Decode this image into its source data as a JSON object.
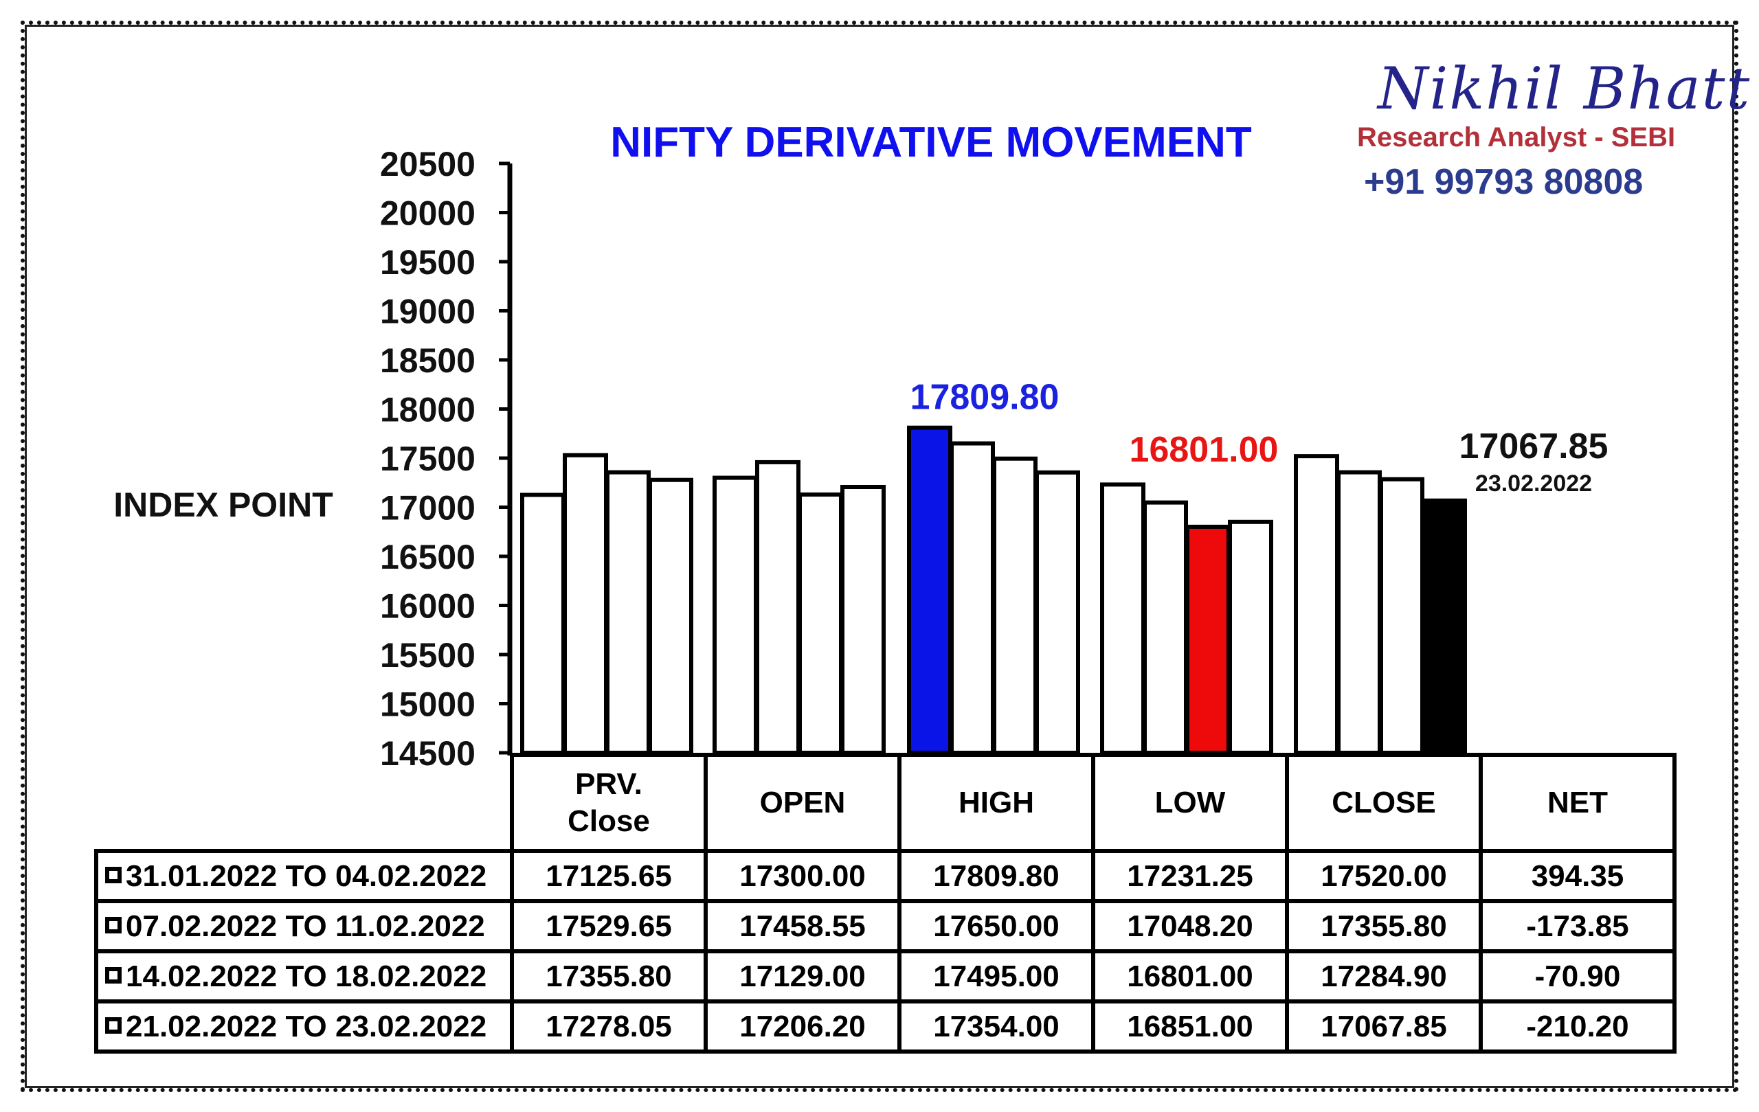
{
  "brand": {
    "name": "Nikhil Bhatt",
    "role": "Research Analyst - SEBI",
    "phone": "+91 99793 80808"
  },
  "colors": {
    "high_bar": "#0a14e6",
    "low_bar": "#ee0a0a",
    "close_bar": "#000000",
    "default_bar": "#ffffff",
    "title": "#1010ee",
    "high_label": "#1a22e0",
    "low_label": "#e81515"
  },
  "chart_data": {
    "type": "bar",
    "title": "NIFTY DERIVATIVE MOVEMENT",
    "ylabel": "INDEX POINT",
    "ylim": [
      14500,
      20500
    ],
    "yticks": [
      "20500",
      "20000",
      "19500",
      "19000",
      "18500",
      "18000",
      "17500",
      "17000",
      "16500",
      "16000",
      "15500",
      "15000",
      "14500"
    ],
    "categories": [
      "PRV. Close",
      "OPEN",
      "HIGH",
      "LOW",
      "CLOSE"
    ],
    "series": [
      {
        "name": "31.01.2022 TO 04.02.2022",
        "values": [
          17125.65,
          17300.0,
          17809.8,
          17231.25,
          17520.0
        ]
      },
      {
        "name": "07.02.2022 TO 11.02.2022",
        "values": [
          17529.65,
          17458.55,
          17650.0,
          17048.2,
          17355.8
        ]
      },
      {
        "name": "14.02.2022 TO 18.02.2022",
        "values": [
          17355.8,
          17129.0,
          17495.0,
          16801.0,
          17284.9
        ]
      },
      {
        "name": "21.02.2022 TO 23.02.2022",
        "values": [
          17278.05,
          17206.2,
          17354.0,
          16851.0,
          17067.85
        ]
      }
    ],
    "highlights": {
      "high": {
        "value_label": "17809.80"
      },
      "low": {
        "value_label": "16801.00"
      },
      "close": {
        "value_label": "17067.85",
        "date": "23.02.2022"
      }
    },
    "grid": false,
    "legend": "table-bottom"
  },
  "table": {
    "headers": [
      {
        "line1": "PRV.",
        "line2": "Close"
      },
      {
        "line1": "OPEN",
        "line2": ""
      },
      {
        "line1": "HIGH",
        "line2": ""
      },
      {
        "line1": "LOW",
        "line2": ""
      },
      {
        "line1": "CLOSE",
        "line2": ""
      },
      {
        "line1": "NET",
        "line2": ""
      }
    ],
    "rows": [
      {
        "label": "31.01.2022 TO 04.02.2022",
        "cells": [
          "17125.65",
          "17300.00",
          "17809.80",
          "17231.25",
          "17520.00",
          "394.35"
        ]
      },
      {
        "label": "07.02.2022 TO 11.02.2022",
        "cells": [
          "17529.65",
          "17458.55",
          "17650.00",
          "17048.20",
          "17355.80",
          "-173.85"
        ]
      },
      {
        "label": "14.02.2022 TO 18.02.2022",
        "cells": [
          "17355.80",
          "17129.00",
          "17495.00",
          "16801.00",
          "17284.90",
          "-70.90"
        ]
      },
      {
        "label": "21.02.2022 TO 23.02.2022",
        "cells": [
          "17278.05",
          "17206.20",
          "17354.00",
          "16851.00",
          "17067.85",
          "-210.20"
        ]
      }
    ]
  }
}
